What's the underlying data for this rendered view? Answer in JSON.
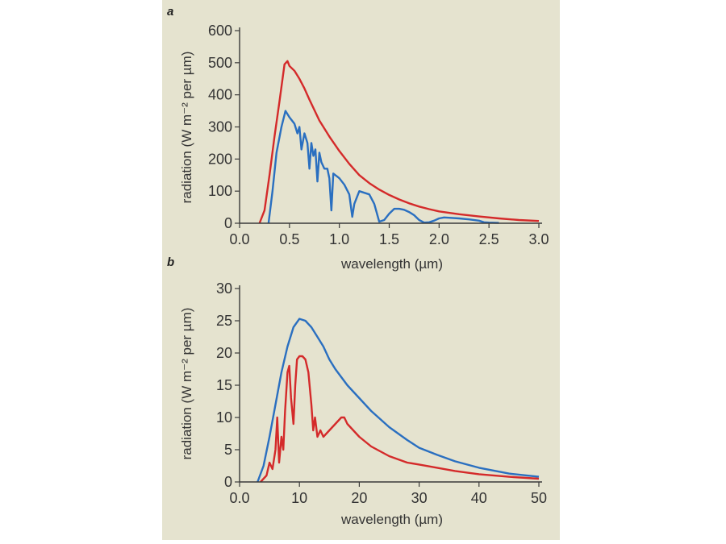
{
  "background_color": "#e5e3cf",
  "chart_data": [
    {
      "type": "line",
      "panel_label": "a",
      "xlabel": "wavelength (µm)",
      "ylabel": "radiation (W m⁻² per µm)",
      "xlim": [
        0.0,
        3.0
      ],
      "ylim": [
        0,
        600
      ],
      "x_ticks": [
        0.0,
        0.5,
        1.0,
        1.5,
        2.0,
        2.5,
        3.0
      ],
      "x_tick_labels": [
        "0.0",
        "0.5",
        "1.0",
        "1.5",
        "2.0",
        "2.5",
        "3.0"
      ],
      "y_ticks": [
        0,
        100,
        200,
        300,
        400,
        500,
        600
      ],
      "y_tick_labels": [
        "0",
        "100",
        "200",
        "300",
        "400",
        "500",
        "600"
      ],
      "grid": false,
      "series": [
        {
          "color": "#d42a2a",
          "x": [
            0.2,
            0.25,
            0.3,
            0.35,
            0.4,
            0.45,
            0.48,
            0.5,
            0.55,
            0.6,
            0.65,
            0.7,
            0.8,
            0.9,
            1.0,
            1.1,
            1.2,
            1.3,
            1.4,
            1.5,
            1.6,
            1.7,
            1.8,
            1.9,
            2.0,
            2.2,
            2.4,
            2.6,
            2.8,
            3.0
          ],
          "y": [
            0,
            40,
            150,
            270,
            380,
            495,
            505,
            490,
            475,
            450,
            420,
            385,
            320,
            270,
            225,
            185,
            150,
            125,
            105,
            88,
            74,
            62,
            52,
            44,
            37,
            28,
            21,
            15,
            10,
            7
          ]
        },
        {
          "color": "#2a6fc0",
          "x": [
            0.29,
            0.33,
            0.37,
            0.42,
            0.46,
            0.5,
            0.55,
            0.58,
            0.6,
            0.62,
            0.65,
            0.68,
            0.7,
            0.72,
            0.74,
            0.76,
            0.78,
            0.8,
            0.82,
            0.85,
            0.88,
            0.9,
            0.92,
            0.94,
            0.96,
            0.98,
            1.0,
            1.05,
            1.1,
            1.13,
            1.15,
            1.2,
            1.25,
            1.3,
            1.35,
            1.4,
            1.45,
            1.5,
            1.55,
            1.6,
            1.65,
            1.7,
            1.75,
            1.8,
            1.85,
            1.9,
            1.95,
            2.0,
            2.05,
            2.1,
            2.2,
            2.3,
            2.4,
            2.45,
            2.5,
            2.6
          ],
          "y": [
            0,
            100,
            220,
            300,
            350,
            330,
            310,
            280,
            300,
            230,
            280,
            250,
            170,
            250,
            210,
            230,
            130,
            220,
            190,
            170,
            170,
            140,
            40,
            155,
            150,
            145,
            140,
            120,
            90,
            20,
            60,
            100,
            95,
            90,
            60,
            5,
            10,
            30,
            45,
            45,
            42,
            35,
            25,
            10,
            2,
            3,
            8,
            15,
            18,
            17,
            15,
            12,
            8,
            3,
            2,
            1
          ]
        }
      ]
    },
    {
      "type": "line",
      "panel_label": "b",
      "xlabel": "wavelength (µm)",
      "ylabel": "radiation (W m⁻² per µm)",
      "xlim": [
        0,
        50
      ],
      "ylim": [
        0,
        30
      ],
      "x_ticks": [
        0,
        10,
        20,
        30,
        40,
        50
      ],
      "x_tick_labels": [
        "0.0",
        "10",
        "20",
        "30",
        "40",
        "50"
      ],
      "y_ticks": [
        0,
        5,
        10,
        15,
        20,
        25,
        30
      ],
      "y_tick_labels": [
        "0",
        "5",
        "10",
        "15",
        "20",
        "25",
        "30"
      ],
      "grid": false,
      "series": [
        {
          "color": "#2a6fc0",
          "x": [
            3,
            4,
            5,
            6,
            7,
            8,
            9,
            10,
            11,
            12,
            13,
            14,
            15,
            16,
            18,
            20,
            22,
            25,
            28,
            30,
            33,
            36,
            40,
            45,
            50
          ],
          "y": [
            0,
            2.5,
            7,
            12,
            17,
            21,
            24,
            25.3,
            25,
            24,
            22.5,
            21,
            19,
            17.5,
            15,
            13,
            11,
            8.5,
            6.5,
            5.3,
            4.2,
            3.2,
            2.2,
            1.3,
            0.8
          ]
        },
        {
          "color": "#d42a2a",
          "x": [
            3.5,
            4.5,
            5,
            5.5,
            6,
            6.3,
            6.6,
            7,
            7.3,
            7.6,
            8,
            8.3,
            8.6,
            9,
            9.3,
            9.6,
            10,
            10.5,
            11,
            11.5,
            12,
            12.3,
            12.6,
            13,
            13.5,
            14,
            15,
            16,
            17,
            17.5,
            18,
            19,
            20,
            22,
            25,
            28,
            30,
            33,
            36,
            40,
            45,
            50
          ],
          "y": [
            0,
            1,
            3,
            2,
            5,
            10,
            3,
            7,
            5,
            11,
            17,
            18,
            13,
            9,
            15,
            19,
            19.5,
            19.5,
            19,
            17,
            12,
            8,
            10,
            7,
            8,
            7,
            8,
            9,
            10,
            10,
            9,
            8,
            7,
            5.5,
            4,
            3,
            2.7,
            2.2,
            1.7,
            1.2,
            0.8,
            0.5
          ]
        }
      ]
    }
  ]
}
